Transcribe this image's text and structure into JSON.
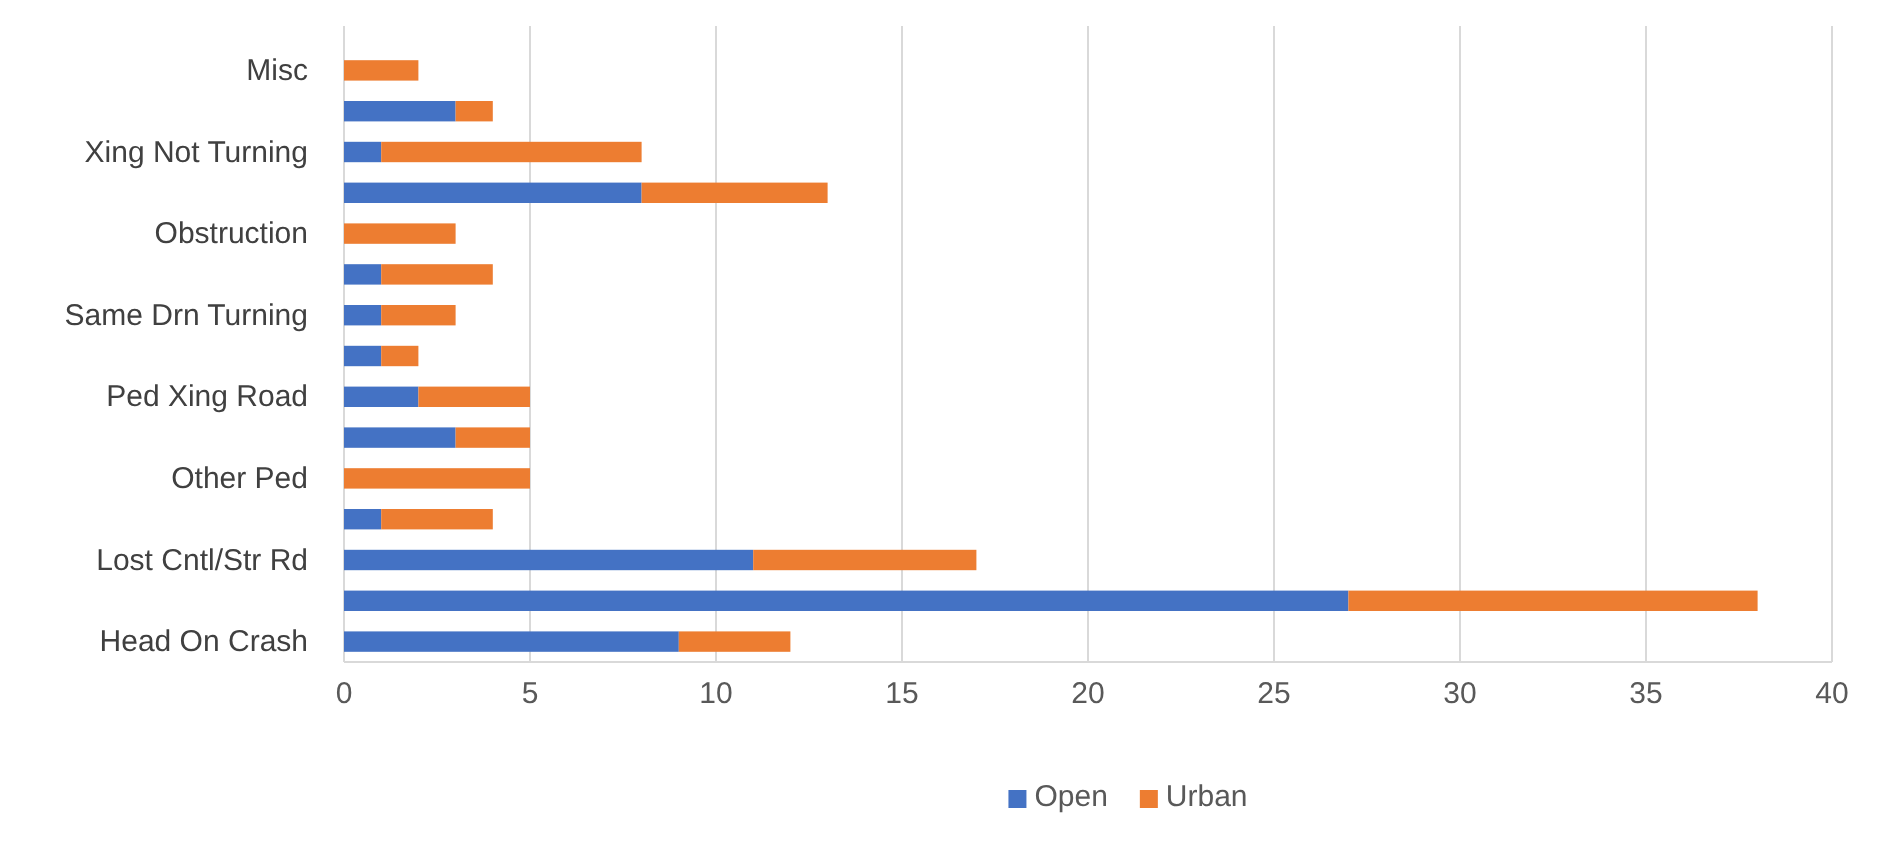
{
  "chart_data": {
    "type": "bar",
    "orientation": "horizontal",
    "stacked": true,
    "categories": [
      "Misc",
      null,
      "Xing Not Turning",
      null,
      "Obstruction",
      null,
      "Same Drn Turning",
      null,
      "Ped Xing Road",
      null,
      "Other Ped",
      null,
      "Lost Cntl/Str Rd",
      null,
      "Head On Crash"
    ],
    "series": [
      {
        "name": "Open",
        "color": "#4472c4",
        "values": [
          0,
          3,
          1,
          8,
          0,
          1,
          1,
          1,
          2,
          3,
          0,
          1,
          11,
          27,
          9
        ]
      },
      {
        "name": "Urban",
        "color": "#ed7d31",
        "values": [
          2,
          1,
          7,
          5,
          3,
          3,
          2,
          1,
          3,
          2,
          5,
          3,
          6,
          11,
          3
        ]
      }
    ],
    "xlim": [
      0,
      40
    ],
    "xticks": [
      0,
      5,
      10,
      15,
      20,
      25,
      30,
      35,
      40
    ],
    "grid": "x",
    "legend": "bottom"
  }
}
